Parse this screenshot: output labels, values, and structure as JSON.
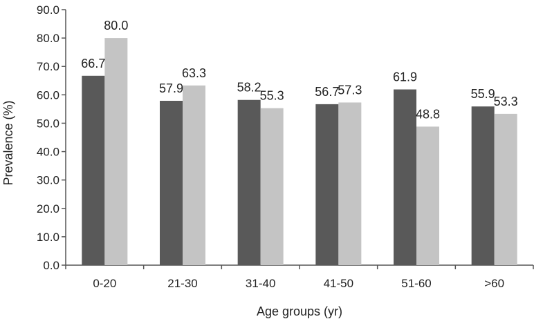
{
  "chart_data": {
    "type": "bar",
    "categories": [
      "0-20",
      "21-30",
      "31-40",
      "41-50",
      "51-60",
      ">60"
    ],
    "series": [
      {
        "values": [
          66.7,
          57.9,
          58.2,
          56.7,
          61.9,
          55.9
        ],
        "color": "#595959"
      },
      {
        "values": [
          80.0,
          63.3,
          55.3,
          57.3,
          48.8,
          53.3
        ],
        "color": "#c4c4c4"
      }
    ],
    "data_labels": [
      [
        "66.7",
        "57.9",
        "58.2",
        "56.7",
        "61.9",
        "55.9"
      ],
      [
        "80.0",
        "63.3",
        "55.3",
        "57.3",
        "48.8",
        "53.3"
      ]
    ],
    "yticks": [
      "0.0",
      "10.0",
      "20.0",
      "30.0",
      "40.0",
      "50.0",
      "60.0",
      "70.0",
      "80.0",
      "90.0"
    ],
    "ylim": [
      0,
      90
    ],
    "xlabel": "Age groups (yr)",
    "ylabel": "Prevalence (%)",
    "grid": false,
    "legend": false
  }
}
